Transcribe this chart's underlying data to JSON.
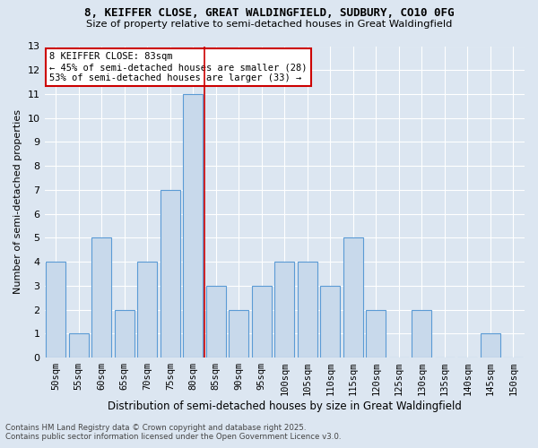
{
  "title1": "8, KEIFFER CLOSE, GREAT WALDINGFIELD, SUDBURY, CO10 0FG",
  "title2": "Size of property relative to semi-detached houses in Great Waldingfield",
  "xlabel": "Distribution of semi-detached houses by size in Great Waldingfield",
  "ylabel": "Number of semi-detached properties",
  "categories": [
    "50sqm",
    "55sqm",
    "60sqm",
    "65sqm",
    "70sqm",
    "75sqm",
    "80sqm",
    "85sqm",
    "90sqm",
    "95sqm",
    "100sqm",
    "105sqm",
    "110sqm",
    "115sqm",
    "120sqm",
    "125sqm",
    "130sqm",
    "135sqm",
    "140sqm",
    "145sqm",
    "150sqm"
  ],
  "values": [
    4,
    1,
    5,
    2,
    4,
    7,
    11,
    3,
    2,
    3,
    4,
    4,
    3,
    5,
    2,
    0,
    2,
    0,
    0,
    1,
    0
  ],
  "highlight_index": 6,
  "bar_color": "#c8d9eb",
  "bar_edge_color": "#5b9bd5",
  "background_color": "#dce6f1",
  "grid_color": "#ffffff",
  "annotation_text": "8 KEIFFER CLOSE: 83sqm\n← 45% of semi-detached houses are smaller (28)\n53% of semi-detached houses are larger (33) →",
  "annotation_box_color": "#ffffff",
  "annotation_box_edge": "#cc0000",
  "footnote1": "Contains HM Land Registry data © Crown copyright and database right 2025.",
  "footnote2": "Contains public sector information licensed under the Open Government Licence v3.0.",
  "ylim": [
    0,
    13
  ],
  "yticks": [
    0,
    1,
    2,
    3,
    4,
    5,
    6,
    7,
    8,
    9,
    10,
    11,
    12,
    13
  ]
}
